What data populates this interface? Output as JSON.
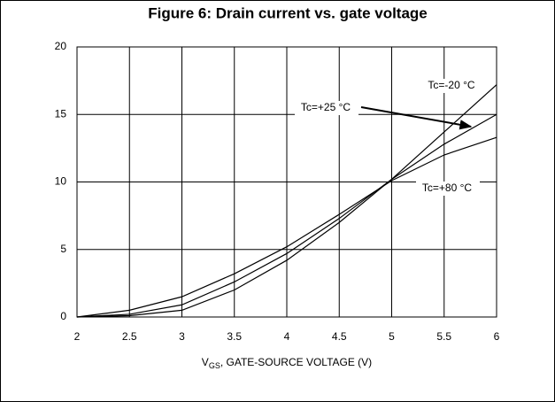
{
  "chart_data": {
    "type": "line",
    "title": "Figure 6: Drain current vs. gate voltage",
    "x_label": {
      "symbol": "V",
      "subscript": "GS",
      "text": ", GATE-SOURCE VOLTAGE (V)"
    },
    "x": [
      2,
      2.5,
      3,
      3.5,
      4,
      4.5,
      5,
      5.5,
      6
    ],
    "series": [
      {
        "name": "Tc=-20 °C",
        "color": "#000000",
        "values": [
          0,
          0.1,
          0.5,
          2.0,
          4.2,
          7.0,
          10.2,
          13.7,
          17.2
        ]
      },
      {
        "name": "Tc=+25 °C",
        "color": "#000000",
        "values": [
          0,
          0.2,
          0.9,
          2.6,
          4.7,
          7.3,
          10.2,
          12.8,
          15.0
        ]
      },
      {
        "name": "Tc=+80 °C",
        "color": "#000000",
        "values": [
          0,
          0.5,
          1.5,
          3.2,
          5.2,
          7.6,
          10.1,
          12.0,
          13.3
        ]
      }
    ],
    "xlim": [
      2,
      6
    ],
    "xticks": [
      2,
      2.5,
      3,
      3.5,
      4,
      4.5,
      5,
      5.5,
      6
    ],
    "ylim": [
      0,
      20
    ],
    "yticks": [
      0,
      5,
      10,
      15,
      20
    ],
    "grid": true
  }
}
